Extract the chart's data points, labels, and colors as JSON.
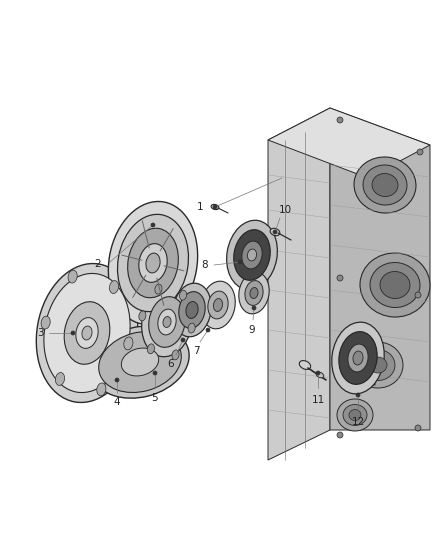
{
  "background_color": "#ffffff",
  "fig_width": 4.38,
  "fig_height": 5.33,
  "dpi": 100,
  "dark": "#2a2a2a",
  "mid": "#666666",
  "light": "#aaaaaa",
  "vlight": "#d8d8d8",
  "black": "#111111"
}
